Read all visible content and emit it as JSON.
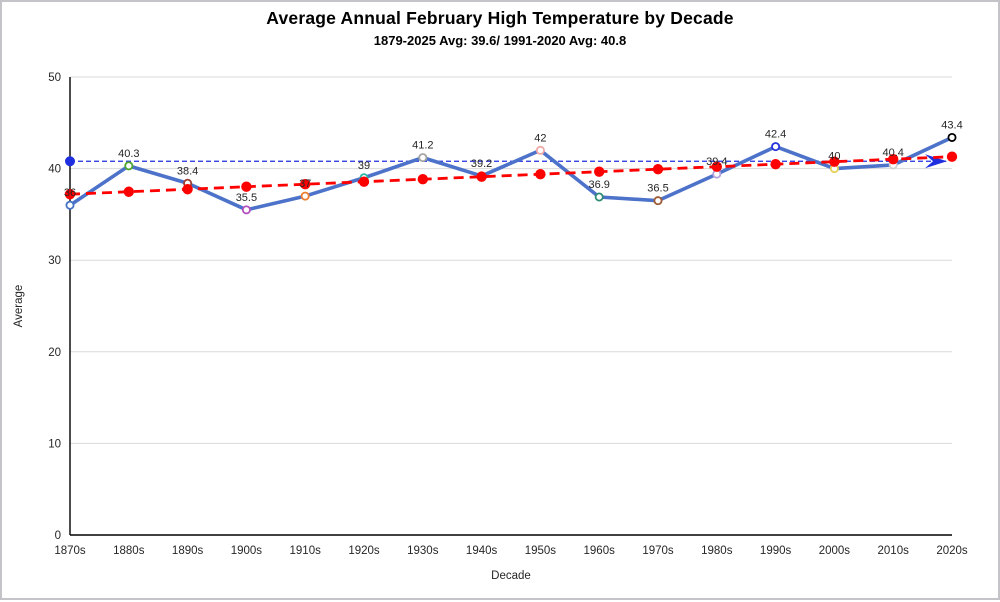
{
  "chart_data": {
    "type": "line",
    "title": "Average Annual February High Temperature by Decade",
    "subtitle": "1879-2025 Avg: 39.6/ 1991-2020 Avg: 40.8",
    "xlabel": "Decade",
    "ylabel": "Average",
    "ylim": [
      0,
      50
    ],
    "yticks": [
      0,
      10,
      20,
      30,
      40,
      50
    ],
    "grid": true,
    "legend": "none",
    "categories": [
      "1870s",
      "1880s",
      "1890s",
      "1900s",
      "1910s",
      "1920s",
      "1930s",
      "1940s",
      "1950s",
      "1960s",
      "1970s",
      "1980s",
      "1990s",
      "2000s",
      "2010s",
      "2020s"
    ],
    "series": [
      {
        "name": "Decade average high temperature",
        "kind": "line",
        "color": "#4d72c9",
        "marker_fill": "#ffffff",
        "values": [
          36,
          40.3,
          38.4,
          35.5,
          37,
          39,
          41.2,
          39.2,
          42,
          36.9,
          36.5,
          39.4,
          42.4,
          40,
          40.4,
          43.4
        ],
        "labels": [
          "36",
          "40.3",
          "38.4",
          "35.5",
          "37",
          "39",
          "41.2",
          "39.2",
          "42",
          "36.9",
          "36.5",
          "39.4",
          "42.4",
          "40",
          "40.4",
          "43.4"
        ],
        "point_colors": [
          "#4472c4",
          "#4ea72e",
          "#9e3b30",
          "#b44fc0",
          "#ed7d31",
          "#2bb5a5",
          "#a5a5a5",
          "#ff0000",
          "#f0a8a8",
          "#2e8b74",
          "#9c5b35",
          "#b3a2db",
          "#2633d9",
          "#e3d157",
          "#cfcfcf",
          "#000000"
        ]
      },
      {
        "name": "Linear trend 1870s-2020s",
        "kind": "trendline",
        "color": "#fe0000",
        "start": 37.2,
        "end": 41.3
      },
      {
        "name": "1991-2020 average reference line",
        "kind": "refline",
        "color": "#1f2fe0",
        "value": 40.8
      }
    ],
    "colors": {
      "gridline": "#d9d9d9",
      "axis": "#000000",
      "tick_label": "#262626",
      "data_label": "#262626"
    }
  }
}
